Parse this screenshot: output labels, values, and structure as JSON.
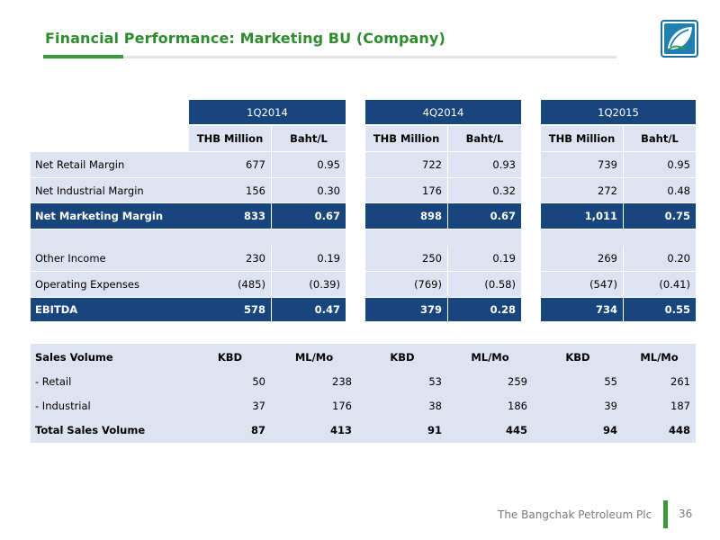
{
  "slide": {
    "title": "Financial Performance: Marketing BU (Company)",
    "footer": "The Bangchak Petroleum Plc",
    "page_number": "36"
  },
  "financial_table": {
    "periods": [
      "1Q2014",
      "4Q2014",
      "1Q2015"
    ],
    "subheaders": [
      "THB Million",
      "Baht/L"
    ],
    "rows": [
      {
        "label": "Net Retail Margin",
        "values": [
          "677",
          "0.95",
          "722",
          "0.93",
          "739",
          "0.95"
        ]
      },
      {
        "label": "Net Industrial Margin",
        "values": [
          "156",
          "0.30",
          "176",
          "0.32",
          "272",
          "0.48"
        ]
      },
      {
        "label": "Net Marketing Margin",
        "values": [
          "833",
          "0.67",
          "898",
          "0.67",
          "1,011",
          "0.75"
        ]
      },
      {
        "label": "Other Income",
        "values": [
          "230",
          "0.19",
          "250",
          "0.19",
          "269",
          "0.20"
        ]
      },
      {
        "label": "Operating Expenses",
        "values": [
          "(485)",
          "(0.39)",
          "(769)",
          "(0.58)",
          "(547)",
          "(0.41)"
        ]
      },
      {
        "label": "EBITDA",
        "values": [
          "578",
          "0.47",
          "379",
          "0.28",
          "734",
          "0.55"
        ]
      }
    ]
  },
  "sales_table": {
    "header_label": "Sales Volume",
    "subheaders": [
      "KBD",
      "ML/Mo"
    ],
    "rows": [
      {
        "label": " - Retail",
        "values": [
          "50",
          "238",
          "53",
          "259",
          "55",
          "261"
        ]
      },
      {
        "label": " - Industrial",
        "values": [
          "37",
          "176",
          "38",
          "186",
          "39",
          "187"
        ]
      },
      {
        "label": "Total Sales Volume",
        "values": [
          "87",
          "413",
          "91",
          "445",
          "94",
          "448"
        ]
      }
    ]
  },
  "colors": {
    "title_green": "#2e8b2e",
    "navy": "#17457c",
    "light_blue": "#dde3f0",
    "footer_gray": "#7a7a7a"
  },
  "icons": {
    "logo": "bangchak-leaf-logo"
  }
}
